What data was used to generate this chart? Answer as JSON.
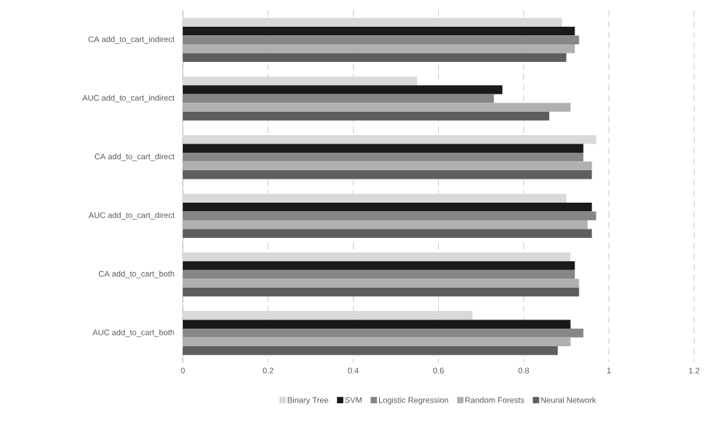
{
  "chart_data": {
    "type": "bar",
    "orientation": "horizontal",
    "categories": [
      "CA add_to_cart_indirect",
      "AUC add_to_cart_indirect",
      "CA add_to_cart_direct",
      "AUC add_to_cart_direct",
      "CA add_to_cart_both",
      "AUC add_to_cart_both"
    ],
    "series": [
      {
        "name": "Binary Tree",
        "color": "#d9d9d9",
        "values": [
          0.89,
          0.55,
          0.97,
          0.9,
          0.91,
          0.68
        ]
      },
      {
        "name": "SVM",
        "color": "#1a1a1a",
        "values": [
          0.92,
          0.75,
          0.94,
          0.96,
          0.92,
          0.91
        ]
      },
      {
        "name": "Logistic Regression",
        "color": "#878787",
        "values": [
          0.93,
          0.73,
          0.94,
          0.97,
          0.92,
          0.94
        ]
      },
      {
        "name": "Random Forests",
        "color": "#b0b0b0",
        "values": [
          0.92,
          0.91,
          0.96,
          0.95,
          0.93,
          0.91
        ]
      },
      {
        "name": "Neural Network",
        "color": "#5e5e5e",
        "values": [
          0.9,
          0.86,
          0.96,
          0.96,
          0.93,
          0.88
        ]
      }
    ],
    "xlim": [
      0,
      1.2
    ],
    "xticks": [
      0,
      0.2,
      0.4,
      0.6,
      0.8,
      1,
      1.2
    ],
    "grid": "x",
    "legend": "bottom"
  }
}
